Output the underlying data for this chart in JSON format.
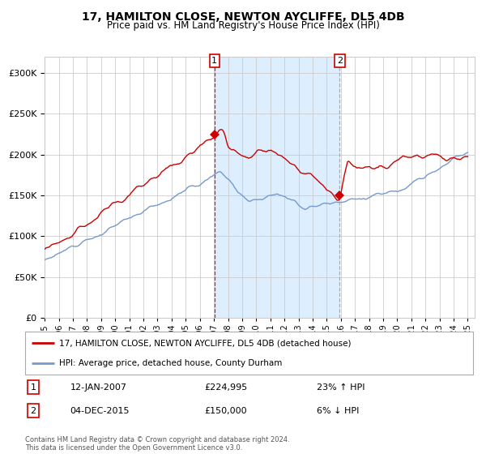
{
  "title": "17, HAMILTON CLOSE, NEWTON AYCLIFFE, DL5 4DB",
  "subtitle": "Price paid vs. HM Land Registry's House Price Index (HPI)",
  "legend_line1": "17, HAMILTON CLOSE, NEWTON AYCLIFFE, DL5 4DB (detached house)",
  "legend_line2": "HPI: Average price, detached house, County Durham",
  "annotation1_date": "12-JAN-2007",
  "annotation1_price": "£224,995",
  "annotation1_hpi": "23% ↑ HPI",
  "annotation2_date": "04-DEC-2015",
  "annotation2_price": "£150,000",
  "annotation2_hpi": "6% ↓ HPI",
  "footer": "Contains HM Land Registry data © Crown copyright and database right 2024.\nThis data is licensed under the Open Government Licence v3.0.",
  "red_color": "#cc0000",
  "blue_color": "#7799cc",
  "shading_color": "#ddeeff",
  "background_color": "#ffffff",
  "grid_color": "#cccccc",
  "ylim": [
    0,
    320000
  ],
  "yticks": [
    0,
    50000,
    100000,
    150000,
    200000,
    250000,
    300000
  ],
  "start_year": 1995,
  "end_year": 2025,
  "event1_year": 2007.04,
  "event2_year": 2015.92,
  "event1_price": 224995,
  "event2_price": 150000
}
